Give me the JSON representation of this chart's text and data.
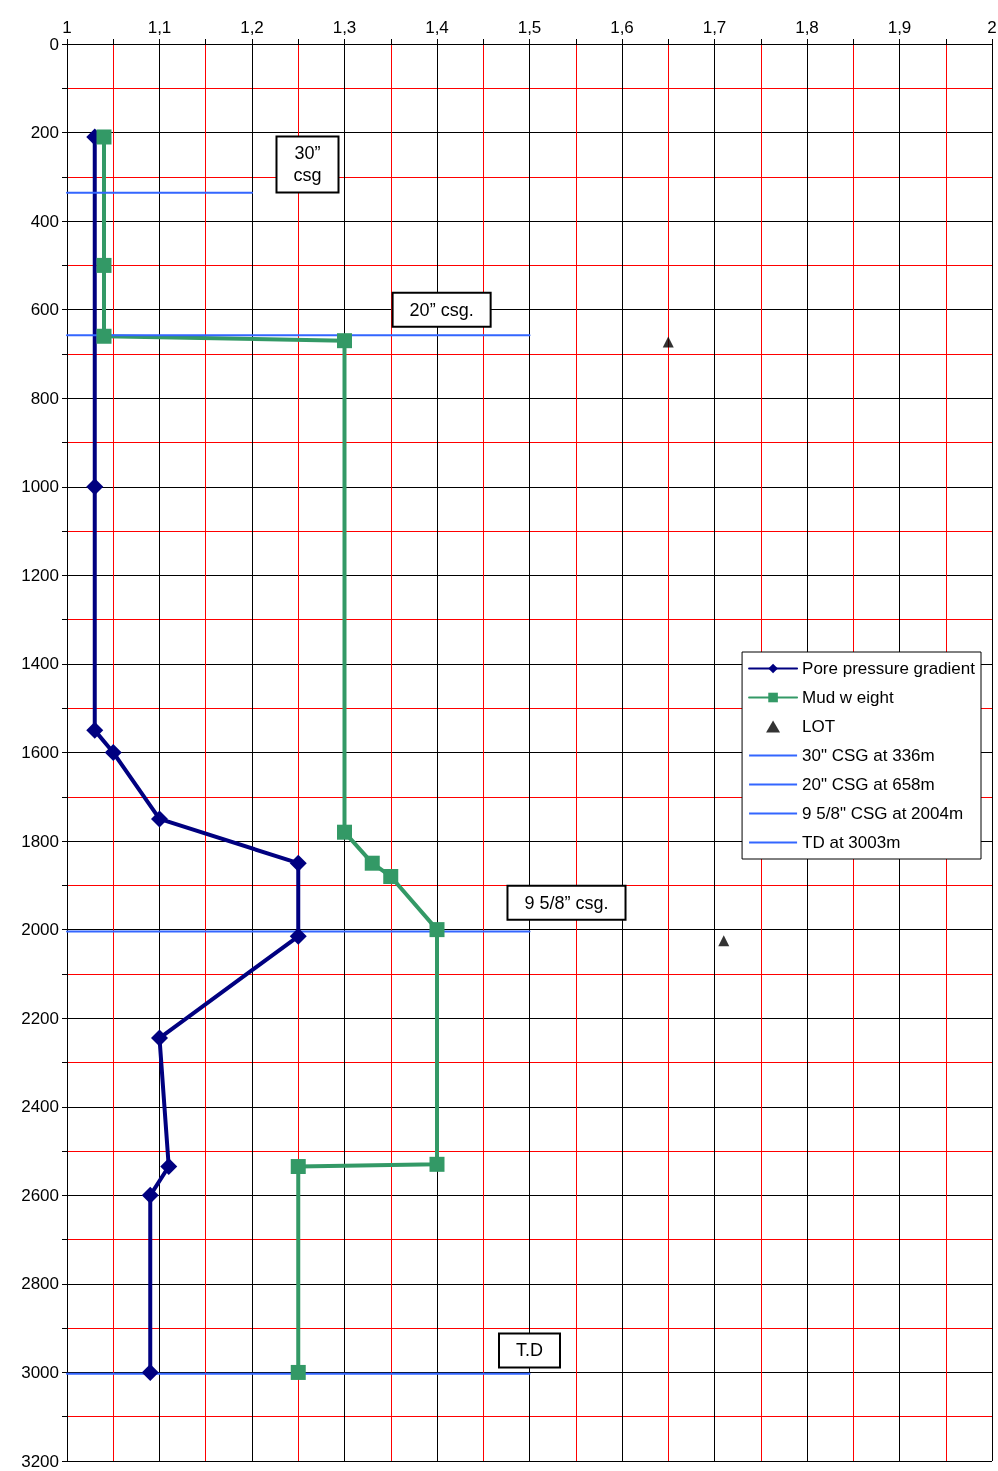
{
  "chart_data": {
    "type": "line",
    "xlim": [
      1,
      2
    ],
    "xticks": [
      1,
      {
        "value": 1.05,
        "label": null
      },
      {
        "value": 1.1,
        "label": "1,1"
      },
      {
        "value": 1.15,
        "label": null
      },
      {
        "value": 1.2,
        "label": "1,2"
      },
      {
        "value": 1.25,
        "label": null
      },
      {
        "value": 1.3,
        "label": "1,3"
      },
      {
        "value": 1.35,
        "label": null
      },
      {
        "value": 1.4,
        "label": "1,4"
      },
      {
        "value": 1.45,
        "label": null
      },
      {
        "value": 1.5,
        "label": "1,5"
      },
      {
        "value": 1.55,
        "label": null
      },
      {
        "value": 1.6,
        "label": "1,6"
      },
      {
        "value": 1.65,
        "label": null
      },
      {
        "value": 1.7,
        "label": "1,7"
      },
      {
        "value": 1.75,
        "label": null
      },
      {
        "value": 1.8,
        "label": "1,8"
      },
      {
        "value": 1.85,
        "label": null
      },
      {
        "value": 1.9,
        "label": "1,9"
      },
      {
        "value": 1.95,
        "label": null
      },
      2
    ],
    "ylim": [
      3200,
      0
    ],
    "yticks": [
      0,
      {
        "value": 100,
        "label": null
      },
      200,
      {
        "value": 300,
        "label": null
      },
      400,
      {
        "value": 500,
        "label": null
      },
      600,
      {
        "value": 700,
        "label": null
      },
      800,
      {
        "value": 900,
        "label": null
      },
      1000,
      {
        "value": 1100,
        "label": null
      },
      1200,
      {
        "value": 1300,
        "label": null
      },
      1400,
      {
        "value": 1500,
        "label": null
      },
      1600,
      {
        "value": 1700,
        "label": null
      },
      1800,
      {
        "value": 1900,
        "label": null
      },
      2000,
      {
        "value": 2100,
        "label": null
      },
      2200,
      {
        "value": 2300,
        "label": null
      },
      2400,
      {
        "value": 2500,
        "label": null
      },
      2600,
      {
        "value": 2700,
        "label": null
      },
      2800,
      {
        "value": 2900,
        "label": null
      },
      3000,
      {
        "value": 3100,
        "label": null
      },
      3200
    ],
    "grid": true,
    "legend": "right",
    "series": [
      {
        "name": "Pore pressure gradient",
        "type": "line",
        "color": "#000080",
        "marker": "diamond",
        "line_style": "solid",
        "x": [
          1.03,
          1.03,
          1.03,
          1.05,
          1.1,
          1.25,
          1.25,
          1.1,
          1.11,
          1.09,
          1.09
        ],
        "values": [
          210,
          1000,
          1550,
          1600,
          1750,
          1850,
          2015,
          2245,
          2535,
          2600,
          3000
        ]
      },
      {
        "name": "Mud w eight",
        "type": "line",
        "color": "#339966",
        "marker": "square",
        "line_style": "solid",
        "x": [
          1.04,
          1.04,
          1.04,
          1.3,
          1.3,
          1.33,
          1.35,
          1.4,
          1.4,
          1.25,
          1.25
        ],
        "values": [
          210,
          500,
          660,
          670,
          1780,
          1850,
          1880,
          2000,
          2530,
          2535,
          3000
        ]
      },
      {
        "name": "LOT",
        "type": "scatter",
        "color": "#000000",
        "marker": "triangle",
        "x": [
          1.65,
          1.71
        ],
        "values": [
          673,
          2025
        ]
      },
      {
        "name": "30\" CSG at 336m",
        "type": "line",
        "color": "#3366ff",
        "marker": "none",
        "line_style": "solid",
        "x": [
          1,
          1.2
        ],
        "values": [
          336,
          336
        ]
      },
      {
        "name": "20\" CSG at 658m",
        "type": "line",
        "color": "#3366ff",
        "marker": "none",
        "line_style": "solid",
        "x": [
          1,
          1.5
        ],
        "values": [
          658,
          658
        ]
      },
      {
        "name": "9 5/8\" CSG at 2004m",
        "type": "line",
        "color": "#3366ff",
        "marker": "none",
        "line_style": "solid",
        "x": [
          1,
          1.5
        ],
        "values": [
          2004,
          2004
        ]
      },
      {
        "name": "TD at 3003m",
        "type": "line",
        "color": "#3366ff",
        "marker": "none",
        "line_style": "solid",
        "x": [
          1,
          1.5
        ],
        "values": [
          3003,
          3003
        ]
      }
    ],
    "annotations": [
      "30”\ncsg",
      "20” csg.",
      "9 5/8” csg.",
      "T.D"
    ]
  }
}
